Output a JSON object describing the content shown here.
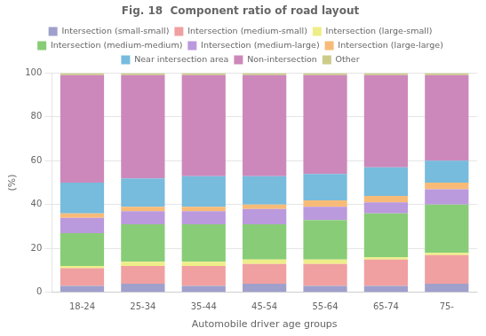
{
  "chart_data": {
    "type": "bar",
    "stacked": true,
    "title": "Fig. 18  Component ratio of road layout",
    "xlabel": "Automobile driver age groups",
    "ylabel": "(%)",
    "categories": [
      "18-24",
      "25-34",
      "35-44",
      "45-54",
      "55-64",
      "65-74",
      "75-"
    ],
    "series": [
      {
        "name": "Intersection (small-small)",
        "color": "#a0a0cc",
        "values": [
          3,
          4,
          3,
          4,
          3,
          3,
          4
        ]
      },
      {
        "name": "Intersection (medium-small)",
        "color": "#f0a0a0",
        "values": [
          8,
          8,
          9,
          9,
          10,
          12,
          13
        ]
      },
      {
        "name": "Intersection (large-small)",
        "color": "#eeee88",
        "values": [
          1,
          2,
          2,
          2,
          2,
          1,
          1
        ]
      },
      {
        "name": "Intersection (medium-medium)",
        "color": "#88cc77",
        "values": [
          15,
          17,
          17,
          16,
          18,
          20,
          22
        ]
      },
      {
        "name": "Intersection (medium-large)",
        "color": "#bb99dd",
        "values": [
          7,
          6,
          6,
          7,
          6,
          5,
          7
        ]
      },
      {
        "name": "Intersection (large-large)",
        "color": "#f8bb77",
        "values": [
          2,
          2,
          2,
          2,
          3,
          3,
          3
        ]
      },
      {
        "name": "Near intersection area",
        "color": "#77bbdd",
        "values": [
          14,
          13,
          14,
          13,
          12,
          13,
          10
        ]
      },
      {
        "name": "Non-intersection",
        "color": "#cc88bb",
        "values": [
          49,
          47,
          46,
          46,
          45,
          42,
          39
        ]
      },
      {
        "name": "Other",
        "color": "#cccc88",
        "values": [
          1,
          1,
          1,
          1,
          1,
          1,
          1
        ]
      }
    ],
    "ylim": [
      0,
      100
    ],
    "yticks": [
      0,
      20,
      40,
      60,
      80,
      100
    ],
    "grid": "y",
    "legend": "top"
  }
}
